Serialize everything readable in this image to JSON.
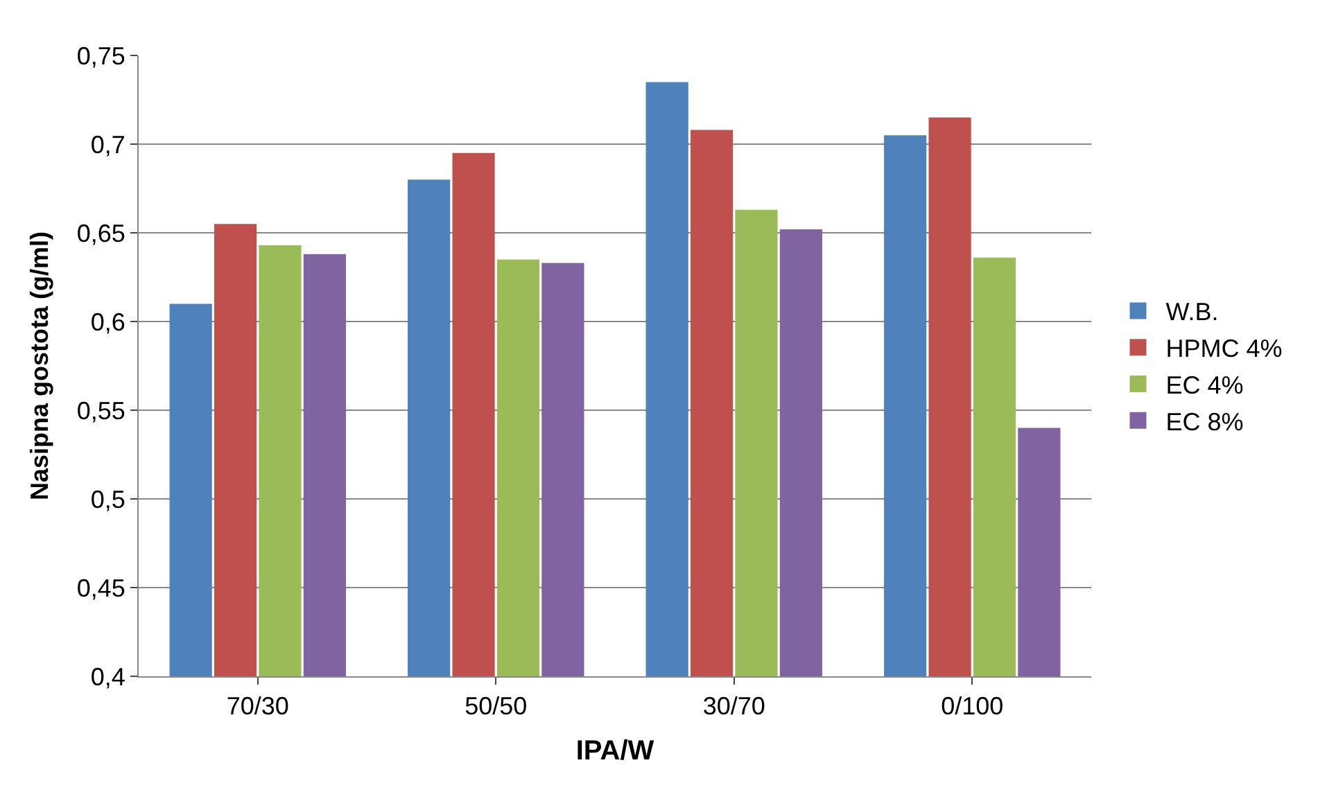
{
  "chart_data": {
    "type": "bar",
    "xlabel": "IPA/W",
    "ylabel": "Nasipna gostota (g/ml)",
    "categories": [
      "70/30",
      "50/50",
      "30/70",
      "0/100"
    ],
    "series": [
      {
        "name": "W.B.",
        "color": "#4f81bd",
        "values": [
          0.61,
          0.68,
          0.735,
          0.705
        ]
      },
      {
        "name": "HPMC 4%",
        "color": "#c0504d",
        "values": [
          0.655,
          0.695,
          0.708,
          0.715
        ]
      },
      {
        "name": "EC 4%",
        "color": "#9bbb59",
        "values": [
          0.643,
          0.635,
          0.663,
          0.636
        ]
      },
      {
        "name": "EC 8%",
        "color": "#8064a2",
        "values": [
          0.638,
          0.633,
          0.652,
          0.54
        ]
      }
    ],
    "ylim": [
      0.4,
      0.75
    ],
    "yticks": [
      {
        "value": 0.4,
        "label": "0,4"
      },
      {
        "value": 0.45,
        "label": "0,45"
      },
      {
        "value": 0.5,
        "label": "0,5"
      },
      {
        "value": 0.55,
        "label": "0,55"
      },
      {
        "value": 0.6,
        "label": "0,6"
      },
      {
        "value": 0.65,
        "label": "0,65"
      },
      {
        "value": 0.7,
        "label": "0,7"
      },
      {
        "value": 0.75,
        "label": "0,75"
      }
    ],
    "grid": "y",
    "legend": "right"
  }
}
